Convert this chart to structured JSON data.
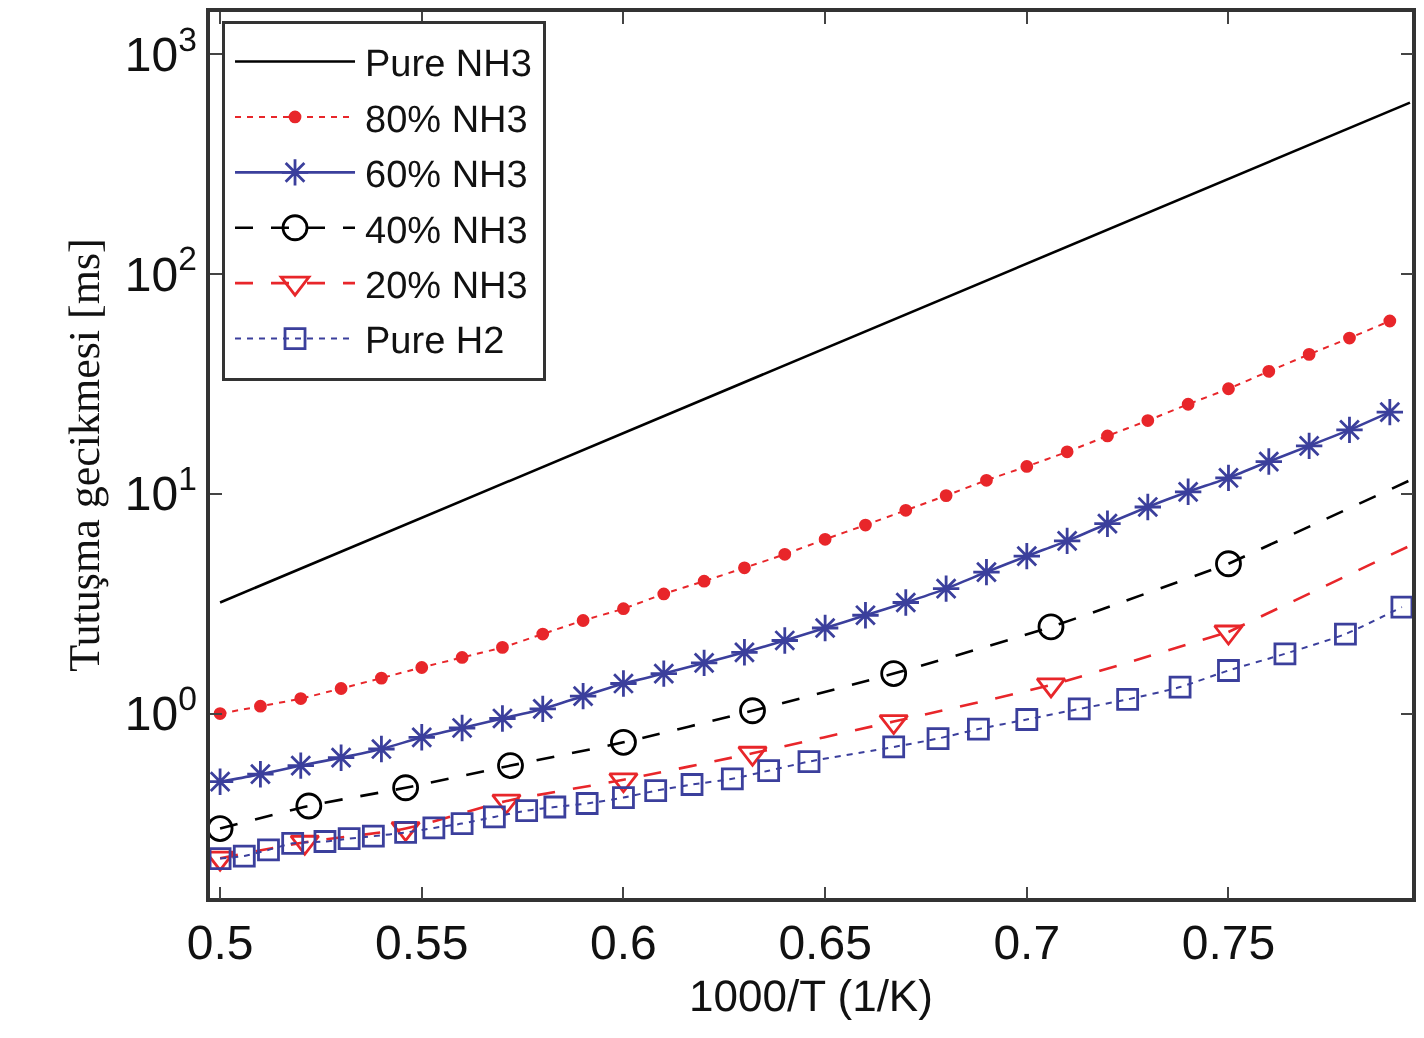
{
  "chart_data": {
    "type": "line",
    "xlabel": "1000/T (1/K)",
    "ylabel": "Tutuşma gecikmesi [ms]",
    "log": "y",
    "xlim": [
      0.4975,
      0.7955
    ],
    "xticks": [
      0.5,
      0.55,
      0.6,
      0.65,
      0.7,
      0.75
    ],
    "ylim": [
      0.145,
      1550
    ],
    "yticks": [
      {
        "value": 1,
        "label": "10$^{0}$"
      },
      {
        "value": 10,
        "label": "10$^{1}$"
      },
      {
        "value": 100,
        "label": "10$^{2}$"
      },
      {
        "value": 1000,
        "label": "10$^{3}$"
      }
    ],
    "legend": "top left",
    "series": [
      {
        "name": "Pure NH3",
        "color": "#000000",
        "line_style": "solid",
        "marker": "none",
        "x": [
          0.5,
          0.795
        ],
        "values": [
          3.2,
          600
        ]
      },
      {
        "name": "80% NH3",
        "color": "#e8262a",
        "line_style": "dotted",
        "marker": "circle",
        "x": [
          0.5,
          0.51,
          0.52,
          0.53,
          0.54,
          0.55,
          0.56,
          0.57,
          0.58,
          0.59,
          0.6,
          0.61,
          0.62,
          0.63,
          0.64,
          0.65,
          0.66,
          0.67,
          0.68,
          0.69,
          0.7,
          0.71,
          0.72,
          0.73,
          0.74,
          0.75,
          0.76,
          0.77,
          0.78,
          0.79
        ],
        "values": [
          1.0,
          1.08,
          1.17,
          1.3,
          1.45,
          1.62,
          1.8,
          2.0,
          2.3,
          2.65,
          3.0,
          3.5,
          4.0,
          4.6,
          5.3,
          6.2,
          7.2,
          8.4,
          9.8,
          11.5,
          13.3,
          15.5,
          18.3,
          21.5,
          25.5,
          30,
          36,
          43,
          51,
          61
        ]
      },
      {
        "name": "60% NH3",
        "color": "#3b3f9c",
        "line_style": "solid",
        "marker": "cross",
        "x": [
          0.5,
          0.51,
          0.52,
          0.53,
          0.54,
          0.55,
          0.56,
          0.57,
          0.58,
          0.59,
          0.6,
          0.61,
          0.62,
          0.63,
          0.64,
          0.65,
          0.66,
          0.67,
          0.68,
          0.69,
          0.7,
          0.71,
          0.72,
          0.73,
          0.74,
          0.75,
          0.76,
          0.77,
          0.78,
          0.79
        ],
        "values": [
          0.49,
          0.53,
          0.58,
          0.63,
          0.69,
          0.78,
          0.86,
          0.95,
          1.05,
          1.2,
          1.37,
          1.52,
          1.7,
          1.9,
          2.15,
          2.45,
          2.8,
          3.2,
          3.7,
          4.4,
          5.2,
          6.1,
          7.3,
          8.7,
          10.2,
          11.8,
          14,
          16.5,
          19.5,
          23.5
        ]
      },
      {
        "name": "40% NH3",
        "color": "#000000",
        "line_style": "dashed",
        "marker": "circle",
        "x": [
          0.5,
          0.522,
          0.546,
          0.572,
          0.6,
          0.632,
          0.667,
          0.706,
          0.75
        ],
        "values": [
          0.3,
          0.38,
          0.46,
          0.58,
          0.74,
          1.03,
          1.52,
          2.48,
          4.8
        ]
      },
      {
        "name": "20% NH3",
        "color": "#e8262a",
        "line_style": "dashed",
        "marker": "triangle",
        "x": [
          0.5,
          0.521,
          0.546,
          0.571,
          0.6,
          0.632,
          0.667,
          0.706,
          0.75
        ],
        "values": [
          0.22,
          0.26,
          0.3,
          0.4,
          0.5,
          0.66,
          0.92,
          1.35,
          2.35
        ]
      },
      {
        "color": "#000000",
        "line_style": "dashed",
        "marker": "none",
        "x": [
          0.75,
          0.795
        ],
        "values": [
          4.8,
          11.5
        ]
      },
      {
        "color": "#e8262a",
        "line_style": "dashed",
        "marker": "none",
        "x": [
          0.75,
          0.795
        ],
        "values": [
          2.35,
          5.8
        ]
      },
      {
        "name": "Pure H2",
        "color": "#3b3f9c",
        "line_style": "dotted",
        "marker": "square",
        "x": [
          0.5,
          0.506,
          0.512,
          0.518,
          0.526,
          0.532,
          0.538,
          0.546,
          0.553,
          0.56,
          0.568,
          0.576,
          0.583,
          0.591,
          0.6,
          0.608,
          0.617,
          0.627,
          0.636,
          0.646,
          0.667,
          0.678,
          0.688,
          0.7,
          0.713,
          0.725,
          0.738,
          0.75,
          0.764,
          0.779,
          0.793
        ],
        "values": [
          0.219,
          0.225,
          0.24,
          0.257,
          0.262,
          0.27,
          0.277,
          0.288,
          0.302,
          0.316,
          0.339,
          0.362,
          0.376,
          0.39,
          0.415,
          0.446,
          0.476,
          0.505,
          0.55,
          0.605,
          0.705,
          0.77,
          0.85,
          0.94,
          1.05,
          1.16,
          1.32,
          1.57,
          1.87,
          2.3,
          3.05
        ]
      }
    ]
  }
}
